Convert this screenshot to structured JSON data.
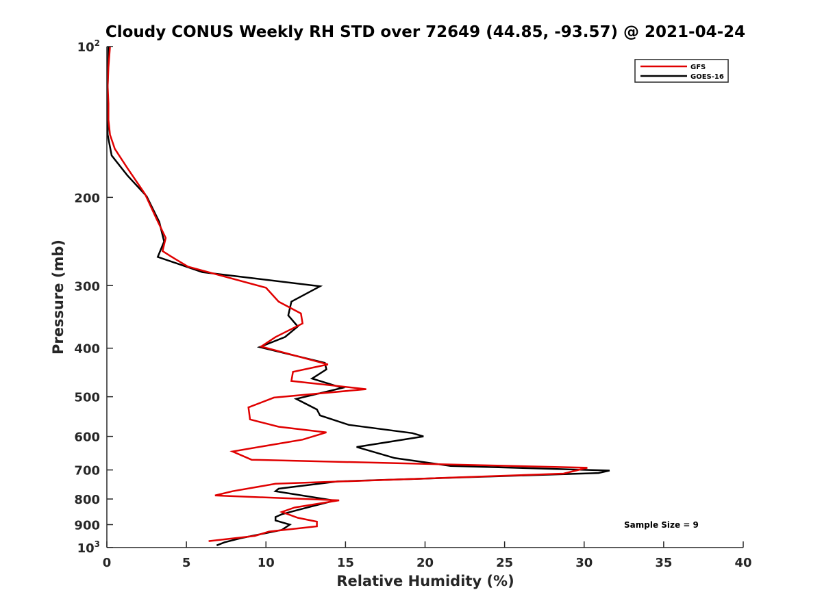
{
  "chart_data": {
    "type": "line",
    "title": "Cloudy CONUS Weekly RH STD over 72649 (44.85, -93.57) @ 2021-04-24",
    "xlabel": "Relative Humidity (%)",
    "ylabel": "Pressure (mb)",
    "xlim": [
      0,
      40
    ],
    "ylim": [
      100,
      1000
    ],
    "y_scale": "log",
    "y_reversed": true,
    "xticks": [
      0,
      5,
      10,
      15,
      20,
      25,
      30,
      35,
      40
    ],
    "xtick_labels": [
      "0",
      "5",
      "10",
      "15",
      "20",
      "25",
      "30",
      "35",
      "40"
    ],
    "yticks": [
      {
        "value": 100,
        "base": "10",
        "exp": "2"
      },
      {
        "value": 200,
        "label": "200"
      },
      {
        "value": 300,
        "label": "300"
      },
      {
        "value": 400,
        "label": "400"
      },
      {
        "value": 500,
        "label": "500"
      },
      {
        "value": 600,
        "label": "600"
      },
      {
        "value": 700,
        "label": "700"
      },
      {
        "value": 800,
        "label": "800"
      },
      {
        "value": 900,
        "label": "900"
      },
      {
        "value": 1000,
        "base": "10",
        "exp": "3"
      }
    ],
    "grid": false,
    "legend_position": "top-right",
    "annotation": "Sample Size = 9",
    "series": [
      {
        "name": "GFS",
        "color": "#e00000",
        "points": [
          [
            0.2,
            100
          ],
          [
            0.1,
            110
          ],
          [
            0.05,
            120
          ],
          [
            0.1,
            130
          ],
          [
            0.1,
            140
          ],
          [
            0.2,
            150
          ],
          [
            0.5,
            160
          ],
          [
            1.3,
            175
          ],
          [
            2.4,
            197
          ],
          [
            3.1,
            220
          ],
          [
            3.7,
            241
          ],
          [
            3.5,
            256
          ],
          [
            4.0,
            262
          ],
          [
            5.1,
            275
          ],
          [
            10,
            303
          ],
          [
            10.8,
            323
          ],
          [
            12.2,
            341
          ],
          [
            12.3,
            357
          ],
          [
            10.6,
            380
          ],
          [
            9.7,
            397
          ],
          [
            13.9,
            431
          ],
          [
            11.7,
            446
          ],
          [
            11.6,
            465
          ],
          [
            16.3,
            483
          ],
          [
            10.5,
            502
          ],
          [
            8.9,
            525
          ],
          [
            9.0,
            555
          ],
          [
            10.8,
            574
          ],
          [
            13.8,
            589
          ],
          [
            12.3,
            609
          ],
          [
            7.9,
            643
          ],
          [
            9.1,
            668
          ],
          [
            30.2,
            693
          ],
          [
            28.7,
            712
          ],
          [
            10.6,
            746
          ],
          [
            7.9,
            772
          ],
          [
            6.8,
            787
          ],
          [
            14.6,
            805
          ],
          [
            11.8,
            832
          ],
          [
            11.0,
            849
          ],
          [
            12.0,
            872
          ],
          [
            13.2,
            888
          ],
          [
            13.2,
            907
          ],
          [
            10.2,
            929
          ],
          [
            9.3,
            948
          ],
          [
            6.4,
            971
          ]
        ]
      },
      {
        "name": "GOES-16",
        "color": "#000000",
        "points": [
          [
            0.1,
            100
          ],
          [
            0.05,
            120
          ],
          [
            0.05,
            150
          ],
          [
            0.3,
            165
          ],
          [
            1.3,
            181
          ],
          [
            2.5,
            199
          ],
          [
            3.3,
            224
          ],
          [
            3.6,
            245
          ],
          [
            3.2,
            263
          ],
          [
            6.0,
            282
          ],
          [
            13.4,
            301
          ],
          [
            11.6,
            323
          ],
          [
            11.4,
            344
          ],
          [
            12.0,
            362
          ],
          [
            11.2,
            380
          ],
          [
            9.6,
            398
          ],
          [
            13.7,
            428
          ],
          [
            13.8,
            441
          ],
          [
            12.9,
            460
          ],
          [
            14.8,
            480
          ],
          [
            11.9,
            505
          ],
          [
            13.2,
            530
          ],
          [
            13.4,
            545
          ],
          [
            15.2,
            569
          ],
          [
            19.2,
            591
          ],
          [
            19.9,
            600
          ],
          [
            15.7,
            630
          ],
          [
            18.1,
            663
          ],
          [
            21.6,
            687
          ],
          [
            31.6,
            702
          ],
          [
            30.9,
            710
          ],
          [
            14.5,
            738
          ],
          [
            10.8,
            763
          ],
          [
            10.6,
            772
          ],
          [
            14.3,
            806
          ],
          [
            12.4,
            835
          ],
          [
            11.0,
            858
          ],
          [
            10.6,
            869
          ],
          [
            10.6,
            883
          ],
          [
            11.5,
            900
          ],
          [
            11.0,
            922
          ],
          [
            8.4,
            958
          ],
          [
            7.4,
            976
          ],
          [
            6.9,
            990
          ]
        ]
      }
    ]
  }
}
